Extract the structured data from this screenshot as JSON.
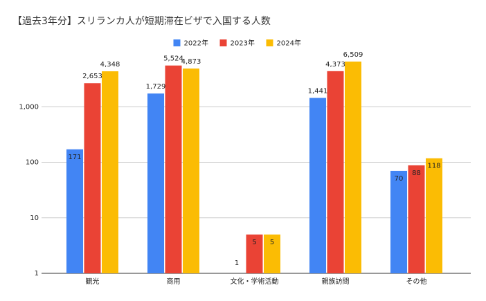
{
  "chart_data": {
    "type": "bar",
    "title": "【過去3年分】スリランカ人が短期滞在ビザで入国する人数",
    "categories": [
      "観光",
      "商用",
      "文化・学術活動",
      "親族訪問",
      "その他"
    ],
    "series": [
      {
        "name": "2022年",
        "color": "#4285f4",
        "values": [
          171,
          1729,
          1,
          1441,
          70
        ],
        "value_labels": [
          "171",
          "1,729",
          "1",
          "1,441",
          "70"
        ]
      },
      {
        "name": "2023年",
        "color": "#ea4335",
        "values": [
          2653,
          5524,
          5,
          4373,
          88
        ],
        "value_labels": [
          "2,653",
          "5,524",
          "5",
          "4,373",
          "88"
        ]
      },
      {
        "name": "2024年",
        "color": "#fbbc04",
        "values": [
          4348,
          4873,
          5,
          6509,
          118
        ],
        "value_labels": [
          "4,348",
          "4,873",
          "5",
          "6,509",
          "118"
        ]
      }
    ],
    "ylim": [
      1,
      10000
    ],
    "log_scale": true,
    "yticks": [
      1,
      10,
      100,
      {
        "value": 1000,
        "label": "1,000"
      }
    ],
    "grid": true,
    "legend": "top"
  }
}
